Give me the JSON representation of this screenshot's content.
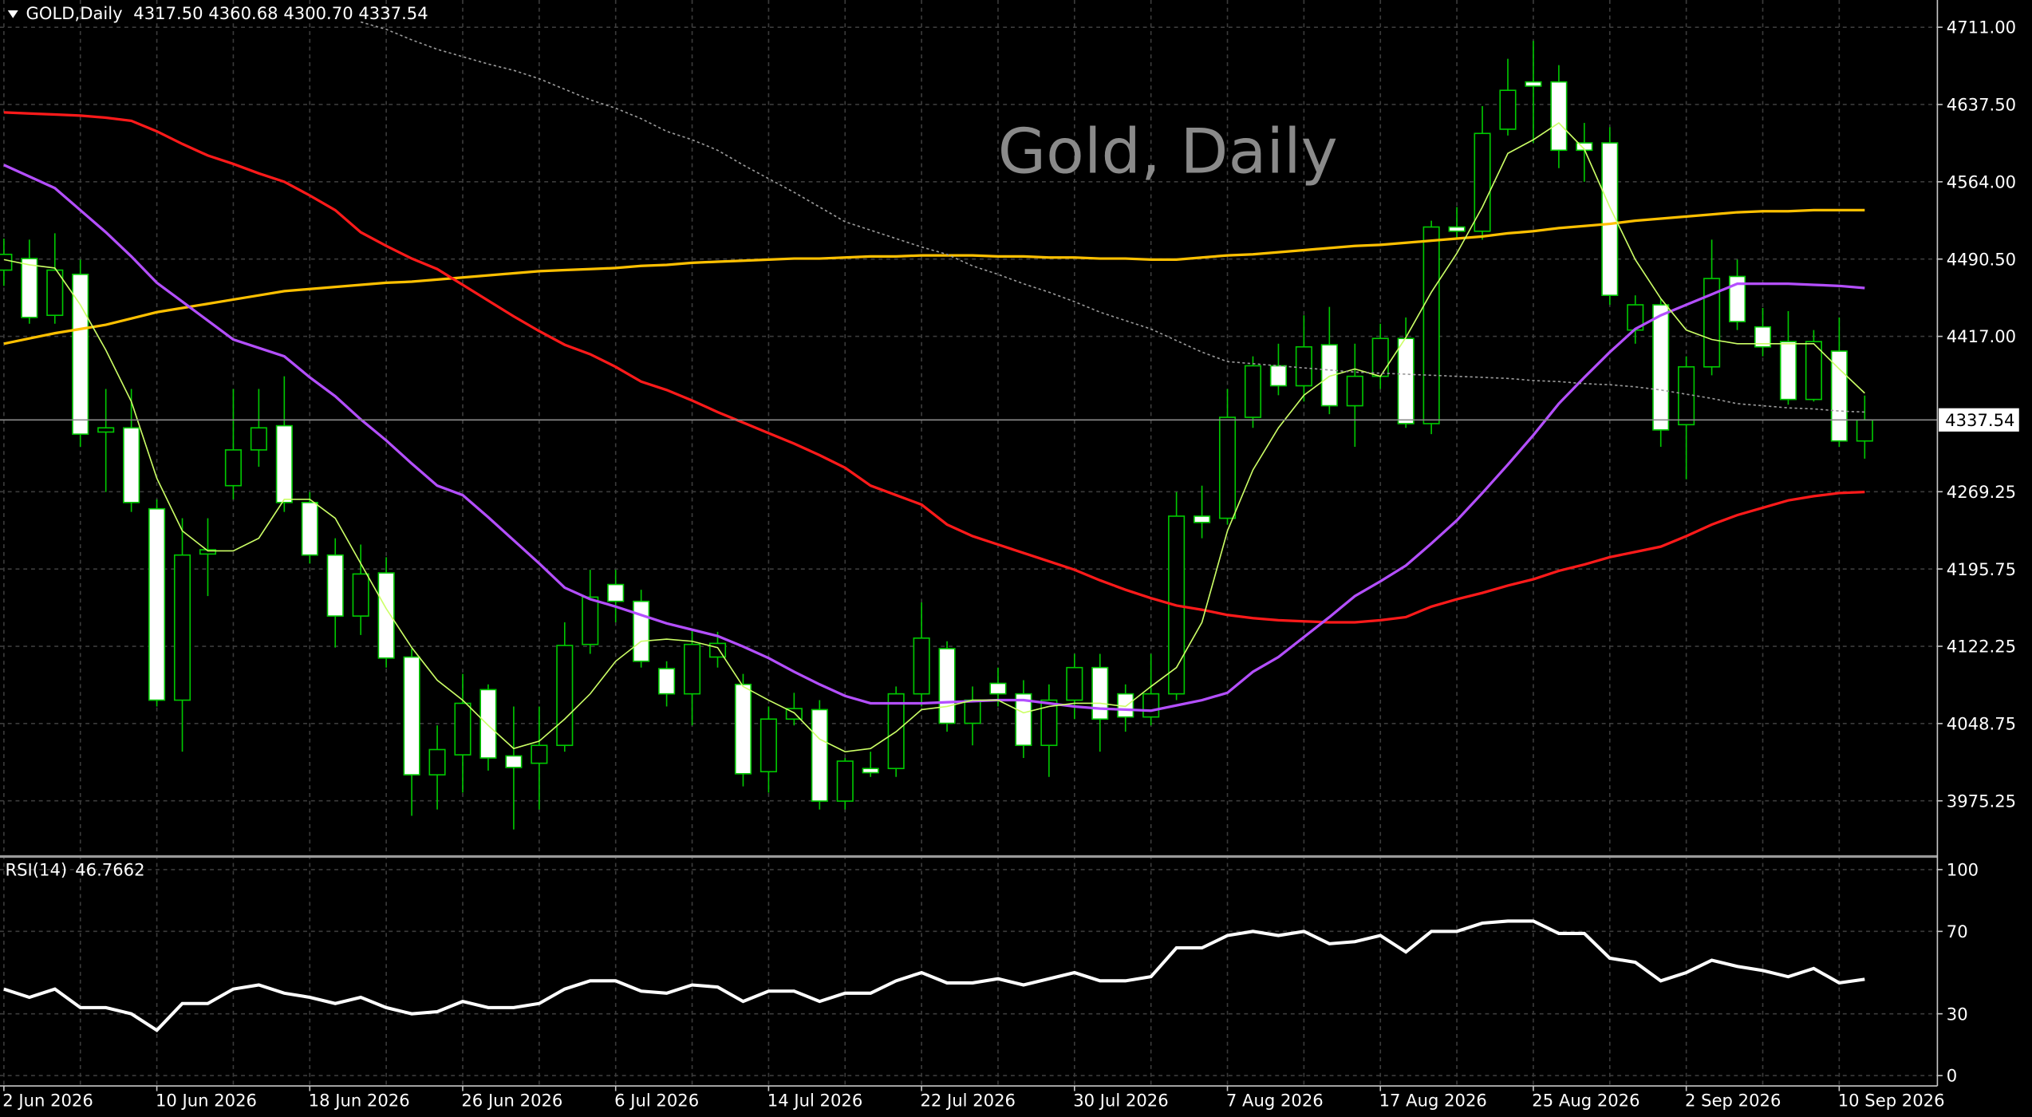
{
  "chart_data": [
    {
      "type": "candlestick",
      "symbol": "GOLD,Daily",
      "quote": "4317.50 4360.68 4300.70 4337.54",
      "title": "Gold, Daily",
      "categories": [
        "2 Jun 2026",
        null,
        null,
        null,
        null,
        null,
        "10 Jun 2026",
        null,
        null,
        null,
        null,
        null,
        "18 Jun 2026",
        null,
        null,
        null,
        null,
        null,
        "26 Jun 2026",
        null,
        null,
        null,
        null,
        null,
        "6 Jul 2026",
        null,
        null,
        null,
        null,
        null,
        "14 Jul 2026",
        null,
        null,
        null,
        null,
        null,
        "22 Jul 2026",
        null,
        null,
        null,
        null,
        null,
        "30 Jul 2026",
        null,
        null,
        null,
        null,
        null,
        "7 Aug 2026",
        null,
        null,
        null,
        null,
        null,
        "17 Aug 2026",
        null,
        null,
        null,
        null,
        null,
        "25 Aug 2026",
        null,
        null,
        null,
        null,
        null,
        "2 Sep 2026",
        null,
        null,
        null,
        null,
        null,
        "10 Sep 2026",
        null
      ],
      "open": [
        4480,
        4491,
        4437,
        4476,
        4326,
        4330,
        4253,
        4071,
        4210,
        4275,
        4309,
        4332,
        4259,
        4209,
        4151,
        4192,
        4112,
        4000,
        4019,
        4081,
        4018,
        4011,
        4028,
        4124,
        4181,
        4165,
        4101,
        4077,
        4112,
        4086,
        4003,
        4053,
        4062,
        3975,
        4006,
        4006,
        4077,
        4120,
        4049,
        4087,
        4077,
        4028,
        4071,
        4102,
        4077,
        4055,
        4077,
        4246,
        4244,
        4340,
        4389,
        4370,
        4409,
        4351,
        4379,
        4415,
        4334,
        4521,
        4517,
        4614,
        4659,
        4659,
        4601,
        4601,
        4423,
        4447,
        4333,
        4388,
        4474,
        4426,
        4412,
        4357,
        4403,
        4317.5
      ],
      "high": [
        4510,
        4509,
        4515,
        4490,
        4367,
        4367,
        4262,
        4244,
        4244,
        4367,
        4367,
        4379,
        4269,
        4225,
        4219,
        4207,
        4120,
        4047,
        4096,
        4086,
        4065,
        4065,
        4145,
        4195,
        4195,
        4176,
        4108,
        4139,
        4136,
        4096,
        4065,
        4078,
        4071,
        4016,
        4022,
        4084,
        4164,
        4127,
        4084,
        4102,
        4090,
        4086,
        4115,
        4115,
        4086,
        4115,
        4269,
        4275,
        4367,
        4398,
        4410,
        4437,
        4445,
        4410,
        4429,
        4435,
        4527,
        4540,
        4636,
        4681,
        4698,
        4675,
        4620,
        4616,
        4456,
        4453,
        4398,
        4509,
        4490,
        4444,
        4441,
        4423,
        4435,
        4360.68
      ],
      "low": [
        4465,
        4429,
        4429,
        4312,
        4269,
        4250,
        4065,
        4022,
        4170,
        4262,
        4293,
        4250,
        4201,
        4121,
        4133,
        4102,
        3961,
        3967,
        3983,
        4004,
        3948,
        3967,
        4022,
        4115,
        4145,
        4102,
        4065,
        4047,
        4102,
        3989,
        3983,
        4047,
        3967,
        3967,
        3998,
        3998,
        4065,
        4041,
        4028,
        4065,
        4016,
        3998,
        4053,
        4022,
        4041,
        4047,
        4071,
        4225,
        4238,
        4330,
        4361,
        4355,
        4343,
        4312,
        4367,
        4330,
        4324,
        4509,
        4509,
        4608,
        4601,
        4577,
        4564,
        4447,
        4410,
        4312,
        4281,
        4380,
        4423,
        4398,
        4352,
        4355,
        4312,
        4300.7
      ],
      "close": [
        4495,
        4435,
        4480,
        4324,
        4330,
        4259,
        4071,
        4209,
        4214,
        4309,
        4330,
        4259,
        4209,
        4151,
        4191,
        4111,
        4000,
        4024,
        4068,
        4016,
        4007,
        4028,
        4123,
        4169,
        4165,
        4108,
        4077,
        4124,
        4125,
        4001,
        4053,
        4063,
        3975,
        4013,
        4002,
        4077,
        4130,
        4049,
        4071,
        4077,
        4028,
        4071,
        4102,
        4053,
        4055,
        4077,
        4246,
        4240,
        4340,
        4389,
        4370,
        4407,
        4351,
        4379,
        4415,
        4334,
        4521,
        4517,
        4610,
        4651,
        4655,
        4594,
        4594,
        4456,
        4447,
        4328,
        4388,
        4472,
        4431,
        4407,
        4357,
        4412,
        4317.5,
        4337.54
      ],
      "up_color": "#00c800",
      "down_color": "#ffffff",
      "wick_color": "#00c800",
      "series": [
        {
          "color": "#ffc000",
          "line_style": "solid",
          "values": [
            4410,
            4415,
            4420,
            4424,
            4428,
            4434,
            4440,
            4444,
            4448,
            4452,
            4456,
            4460,
            4462,
            4464,
            4466,
            4468,
            4469,
            4471,
            4473,
            4475,
            4477,
            4479,
            4480,
            4481,
            4482,
            4484,
            4485,
            4487,
            4488,
            4489,
            4490,
            4491,
            4491,
            4492,
            4493,
            4493,
            4494,
            4494,
            4494,
            4493,
            4493,
            4492,
            4492,
            4491,
            4491,
            4490,
            4490,
            4492,
            4494,
            4495,
            4497,
            4499,
            4501,
            4503,
            4504,
            4506,
            4508,
            4510,
            4512,
            4515,
            4517,
            4520,
            4522,
            4524,
            4527,
            4529,
            4531,
            4533,
            4535,
            4536,
            4536,
            4537,
            4537,
            4537
          ]
        },
        {
          "color": "#ff1a1a",
          "line_style": "solid",
          "values": [
            4630,
            4629,
            4628,
            4627,
            4625,
            4622,
            4612,
            4600,
            4589,
            4581,
            4572,
            4564,
            4551,
            4537,
            4516,
            4503,
            4491,
            4481,
            4466,
            4451,
            4436,
            4422,
            4409,
            4400,
            4388,
            4374,
            4366,
            4356,
            4345,
            4335,
            4325,
            4315,
            4304,
            4292,
            4275,
            4266,
            4257,
            4238,
            4227,
            4219,
            4211,
            4203,
            4195,
            4185,
            4176,
            4168,
            4161,
            4157,
            4152,
            4149,
            4147,
            4146,
            4145,
            4145,
            4147,
            4150,
            4160,
            4167,
            4173,
            4180,
            4186,
            4194,
            4200,
            4207,
            4212,
            4217,
            4227,
            4238,
            4247,
            4254,
            4261,
            4265,
            4268,
            4269
          ]
        },
        {
          "color": "#b44fff",
          "line_style": "solid",
          "values": [
            4580,
            4569,
            4558,
            4537,
            4516,
            4493,
            4468,
            4450,
            4432,
            4414,
            4406,
            4398,
            4378,
            4360,
            4338,
            4318,
            4296,
            4275,
            4266,
            4245,
            4223,
            4201,
            4178,
            4167,
            4160,
            4152,
            4144,
            4138,
            4132,
            4122,
            4111,
            4098,
            4086,
            4075,
            4068,
            4068,
            4068,
            4069,
            4070,
            4071,
            4071,
            4068,
            4065,
            4063,
            4062,
            4061,
            4066,
            4071,
            4078,
            4098,
            4112,
            4131,
            4150,
            4170,
            4184,
            4199,
            4220,
            4242,
            4268,
            4295,
            4323,
            4353,
            4378,
            4402,
            4424,
            4437,
            4447,
            4457,
            4467,
            4467,
            4467,
            4466,
            4465,
            4463
          ]
        },
        {
          "color": "#ccff66",
          "line_style": "thin",
          "values": [
            4490,
            4485,
            4482,
            4447,
            4404,
            4355,
            4282,
            4232,
            4213,
            4213,
            4225,
            4262,
            4262,
            4244,
            4201,
            4158,
            4121,
            4090,
            4071,
            4047,
            4025,
            4032,
            4053,
            4077,
            4108,
            4127,
            4129,
            4127,
            4121,
            4084,
            4071,
            4059,
            4034,
            4022,
            4025,
            4041,
            4062,
            4065,
            4071,
            4071,
            4059,
            4065,
            4068,
            4068,
            4065,
            4084,
            4102,
            4145,
            4232,
            4290,
            4330,
            4361,
            4379,
            4386,
            4379,
            4416,
            4459,
            4496,
            4540,
            4591,
            4604,
            4620,
            4595,
            4540,
            4490,
            4453,
            4423,
            4414,
            4410,
            4410,
            4410,
            4410,
            4386,
            4363
          ]
        },
        {
          "color": "#9a9a9a",
          "line_style": "dotted",
          "values": [
            null,
            null,
            null,
            null,
            null,
            null,
            null,
            null,
            null,
            null,
            null,
            null,
            null,
            null,
            4716,
            4709,
            4699,
            4690,
            4683,
            4676,
            4670,
            4662,
            4652,
            4642,
            4634,
            4624,
            4612,
            4604,
            4594,
            4580,
            4567,
            4554,
            4540,
            4526,
            4518,
            4510,
            4502,
            4495,
            4484,
            4476,
            4467,
            4459,
            4450,
            4440,
            4432,
            4424,
            4413,
            4402,
            4393,
            4391,
            4389,
            4387,
            4385,
            4383,
            4382,
            4381,
            4380,
            4379,
            4378,
            4377,
            4375,
            4374,
            4372,
            4371,
            4369,
            4366,
            4362,
            4358,
            4353,
            4351,
            4349,
            4348,
            4346,
            4345
          ]
        }
      ],
      "last_price": 4337.54,
      "ylim": [
        3923.5,
        4736.9
      ],
      "yticks": [
        {
          "value": 4711,
          "label": "4711.00"
        },
        {
          "value": 4637.5,
          "label": "4637.50"
        },
        {
          "value": 4564,
          "label": "4564.00"
        },
        {
          "value": 4490.5,
          "label": "4490.50"
        },
        {
          "value": 4417,
          "label": "4417.00"
        },
        {
          "value": 4269.25,
          "label": "4269.25"
        },
        {
          "value": 4195.75,
          "label": "4195.75"
        },
        {
          "value": 4122.25,
          "label": "4122.25"
        },
        {
          "value": 4048.75,
          "label": "4048.75"
        },
        {
          "value": 3975.25,
          "label": "3975.25"
        }
      ],
      "grid": true
    },
    {
      "type": "line",
      "title": "RSI(14)",
      "color": "#ffffff",
      "values": [
        42,
        38,
        42,
        33,
        33,
        30,
        22,
        35,
        35,
        42,
        44,
        40,
        38,
        35,
        38,
        33,
        30,
        31,
        36,
        33,
        33,
        35,
        42,
        46,
        46,
        41,
        40,
        44,
        43,
        36,
        41,
        41,
        36,
        40,
        40,
        46,
        50,
        45,
        45,
        47,
        44,
        47,
        50,
        46,
        46,
        48,
        62,
        62,
        68,
        70,
        68,
        70,
        64,
        65,
        68,
        60,
        70,
        70,
        74,
        75,
        75,
        69,
        69,
        57,
        55,
        46,
        50,
        56,
        53,
        51,
        48,
        52,
        45,
        46.7662
      ],
      "ylim": [
        -5,
        105.7
      ],
      "yticks": [
        0,
        30,
        70,
        100
      ],
      "grid": true
    }
  ]
}
